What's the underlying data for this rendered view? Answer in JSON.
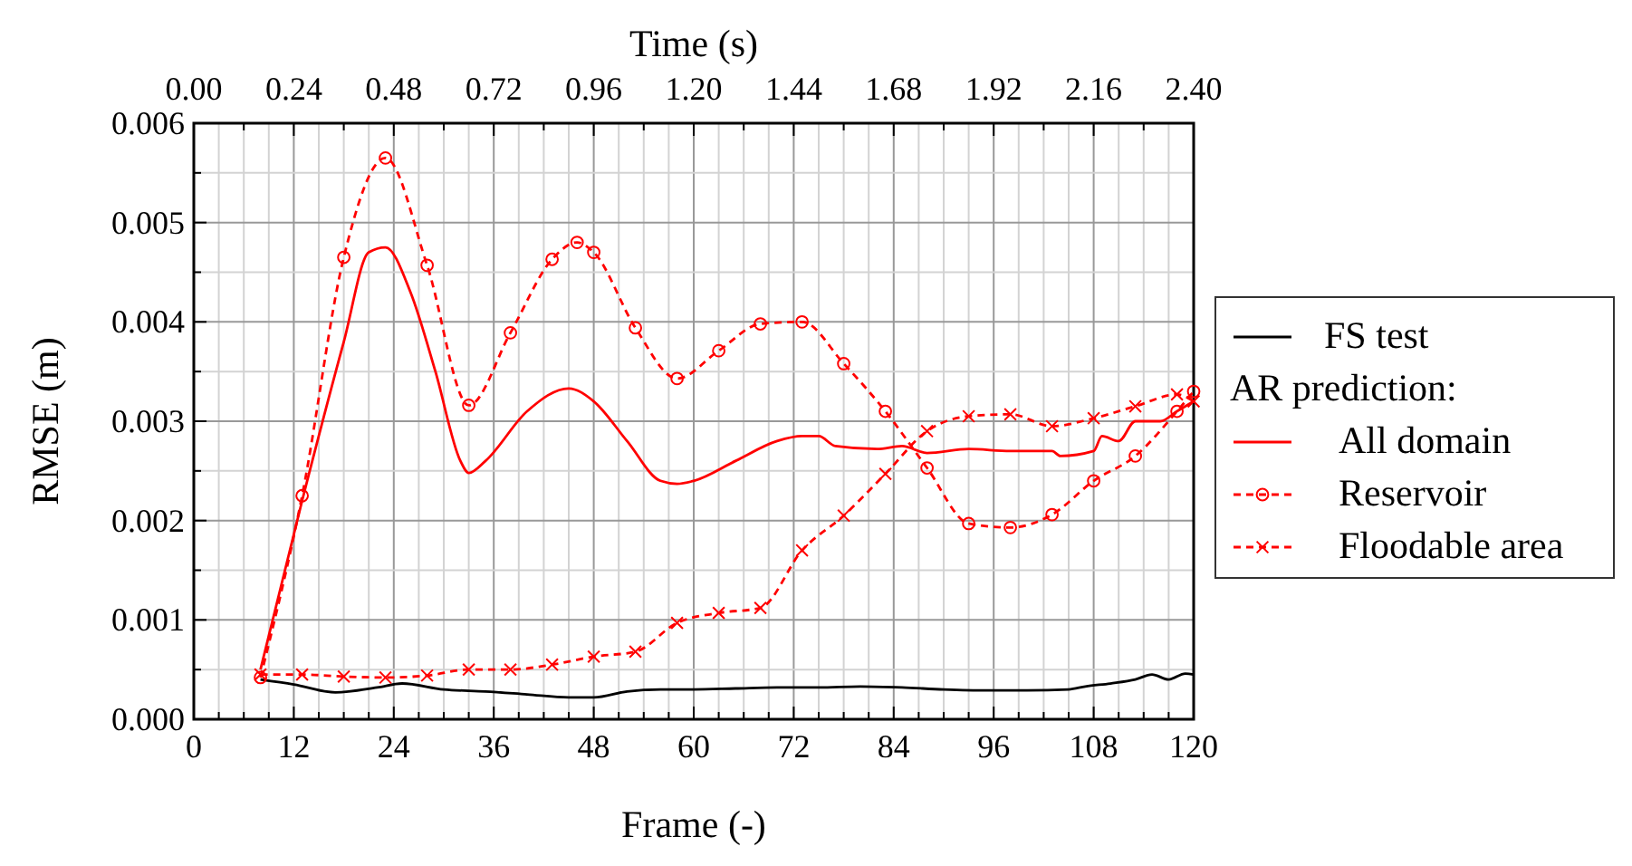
{
  "chart_data": {
    "type": "line",
    "xlabel": "Frame (-)",
    "ylabel": "RMSE (m)",
    "x2label": "Time (s)",
    "legend_title": "AR prediction:",
    "legend": "right",
    "grid": true,
    "xlim": [
      0,
      120
    ],
    "xticks": [
      0,
      {
        "value": 3,
        "label": null
      },
      {
        "value": 6,
        "label": null
      },
      {
        "value": 9,
        "label": null
      },
      12,
      {
        "value": 15,
        "label": null
      },
      {
        "value": 18,
        "label": null
      },
      {
        "value": 21,
        "label": null
      },
      24,
      {
        "value": 27,
        "label": null
      },
      {
        "value": 30,
        "label": null
      },
      {
        "value": 33,
        "label": null
      },
      36,
      {
        "value": 39,
        "label": null
      },
      {
        "value": 42,
        "label": null
      },
      {
        "value": 45,
        "label": null
      },
      48,
      {
        "value": 51,
        "label": null
      },
      {
        "value": 54,
        "label": null
      },
      {
        "value": 57,
        "label": null
      },
      60,
      {
        "value": 63,
        "label": null
      },
      {
        "value": 66,
        "label": null
      },
      {
        "value": 69,
        "label": null
      },
      72,
      {
        "value": 75,
        "label": null
      },
      {
        "value": 78,
        "label": null
      },
      {
        "value": 81,
        "label": null
      },
      84,
      {
        "value": 87,
        "label": null
      },
      {
        "value": 90,
        "label": null
      },
      {
        "value": 93,
        "label": null
      },
      96,
      {
        "value": 99,
        "label": null
      },
      {
        "value": 102,
        "label": null
      },
      {
        "value": 105,
        "label": null
      },
      108,
      {
        "value": 111,
        "label": null
      },
      {
        "value": 114,
        "label": null
      },
      {
        "value": 117,
        "label": null
      },
      120
    ],
    "x2lim": [
      0,
      2.4
    ],
    "x2ticks": [
      {
        "value": 0,
        "label": "0.00"
      },
      {
        "value": 0.12,
        "label": null
      },
      {
        "value": 0.24,
        "label": "0.24"
      },
      {
        "value": 0.36,
        "label": null
      },
      {
        "value": 0.48,
        "label": "0.48"
      },
      {
        "value": 0.6,
        "label": null
      },
      {
        "value": 0.72,
        "label": "0.72"
      },
      {
        "value": 0.84,
        "label": null
      },
      {
        "value": 0.96,
        "label": "0.96"
      },
      {
        "value": 1.08,
        "label": null
      },
      {
        "value": 1.2,
        "label": "1.20"
      },
      {
        "value": 1.32,
        "label": null
      },
      {
        "value": 1.44,
        "label": "1.44"
      },
      {
        "value": 1.56,
        "label": null
      },
      {
        "value": 1.68,
        "label": "1.68"
      },
      {
        "value": 1.8,
        "label": null
      },
      {
        "value": 1.92,
        "label": "1.92"
      },
      {
        "value": 2.04,
        "label": null
      },
      {
        "value": 2.16,
        "label": "2.16"
      },
      {
        "value": 2.28,
        "label": null
      },
      {
        "value": 2.4,
        "label": "2.40"
      }
    ],
    "ylim": [
      0,
      0.006
    ],
    "yticks": [
      {
        "value": 0,
        "label": "0.000"
      },
      {
        "value": 0.0005,
        "label": null
      },
      {
        "value": 0.001,
        "label": "0.001"
      },
      {
        "value": 0.0015,
        "label": null
      },
      {
        "value": 0.002,
        "label": "0.002"
      },
      {
        "value": 0.0025,
        "label": null
      },
      {
        "value": 0.003,
        "label": "0.003"
      },
      {
        "value": 0.0035,
        "label": null
      },
      {
        "value": 0.004,
        "label": "0.004"
      },
      {
        "value": 0.0045,
        "label": null
      },
      {
        "value": 0.005,
        "label": "0.005"
      },
      {
        "value": 0.0055,
        "label": null
      },
      {
        "value": 0.006,
        "label": "0.006"
      }
    ],
    "series": [
      {
        "name": "FS test",
        "color": "#000000",
        "marker": "none",
        "line_style": "solid",
        "x": [
          8,
          12,
          17,
          22,
          25,
          30,
          35,
          40,
          45,
          48,
          52,
          56,
          60,
          65,
          70,
          75,
          80,
          85,
          90,
          95,
          100,
          105,
          107,
          110,
          113,
          115,
          117,
          119,
          120
        ],
        "values": [
          0.0004,
          0.00035,
          0.00027,
          0.00032,
          0.00036,
          0.0003,
          0.00028,
          0.00025,
          0.00022,
          0.00022,
          0.00028,
          0.0003,
          0.0003,
          0.00031,
          0.00032,
          0.00032,
          0.00033,
          0.00032,
          0.0003,
          0.00029,
          0.00029,
          0.0003,
          0.00033,
          0.00036,
          0.0004,
          0.00045,
          0.0004,
          0.00046,
          0.00045
        ]
      },
      {
        "name": "All domain",
        "color": "#ff0000",
        "marker": "none",
        "line_style": "solid",
        "x": [
          8,
          13,
          18,
          21,
          23,
          26,
          29,
          32,
          33,
          35,
          40,
          45,
          48,
          52,
          56,
          58,
          60,
          65,
          70,
          73,
          75,
          77,
          82,
          85,
          88,
          93,
          98,
          103,
          104,
          108,
          109,
          111,
          113,
          116,
          118,
          120
        ],
        "values": [
          0.0005,
          0.0022,
          0.0038,
          0.0047,
          0.00475,
          0.0043,
          0.0035,
          0.0026,
          0.00248,
          0.0026,
          0.0031,
          0.00333,
          0.0032,
          0.0028,
          0.0024,
          0.00237,
          0.0024,
          0.0026,
          0.0028,
          0.00285,
          0.00285,
          0.00275,
          0.00272,
          0.00275,
          0.00268,
          0.00272,
          0.0027,
          0.0027,
          0.00265,
          0.0027,
          0.00285,
          0.0028,
          0.003,
          0.003,
          0.0031,
          0.0032
        ]
      },
      {
        "name": "Reservoir",
        "color": "#ff0000",
        "marker": "circle",
        "line_style": "dashed",
        "x": [
          8,
          13,
          18,
          23,
          28,
          33,
          38,
          43,
          46,
          48,
          53,
          58,
          63,
          68,
          73,
          78,
          83,
          88,
          93,
          98,
          103,
          108,
          113,
          118,
          120
        ],
        "values": [
          0.00042,
          0.00225,
          0.00465,
          0.00565,
          0.00457,
          0.00316,
          0.00389,
          0.00463,
          0.0048,
          0.0047,
          0.00394,
          0.00343,
          0.00371,
          0.00398,
          0.004,
          0.00358,
          0.0031,
          0.00253,
          0.00197,
          0.00193,
          0.00206,
          0.0024,
          0.00265,
          0.0031,
          0.0033
        ]
      },
      {
        "name": "Floodable area",
        "color": "#ff0000",
        "marker": "cross",
        "line_style": "dashed",
        "x": [
          8,
          13,
          18,
          23,
          28,
          33,
          38,
          43,
          48,
          53,
          58,
          63,
          68,
          73,
          78,
          83,
          88,
          93,
          98,
          103,
          108,
          113,
          118,
          120
        ],
        "values": [
          0.00045,
          0.00045,
          0.00043,
          0.00042,
          0.00044,
          0.0005,
          0.0005,
          0.00055,
          0.00063,
          0.00068,
          0.00097,
          0.00107,
          0.00112,
          0.0017,
          0.00205,
          0.00247,
          0.0029,
          0.00305,
          0.00307,
          0.00295,
          0.00303,
          0.00315,
          0.00327,
          0.0032
        ]
      }
    ]
  }
}
